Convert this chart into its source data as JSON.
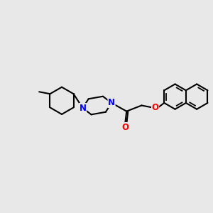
{
  "bg_color": "#e8e8e8",
  "bond_color": "#000000",
  "N_color": "#0000ff",
  "O_color": "#ff0000",
  "line_width": 1.5,
  "font_size_atom": 8.5,
  "figsize": [
    3.0,
    3.0
  ],
  "dpi": 100,
  "xlim": [
    0,
    10
  ],
  "ylim": [
    0,
    10
  ]
}
